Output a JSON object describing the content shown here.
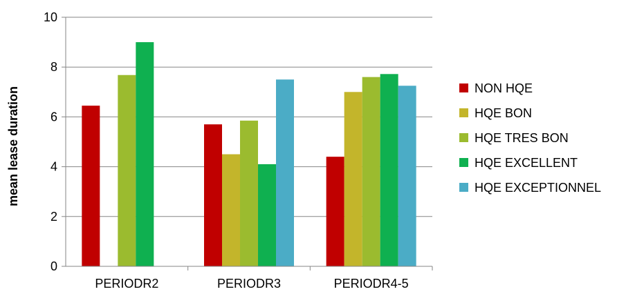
{
  "chart_data": {
    "type": "bar",
    "title": "",
    "xlabel": "",
    "ylabel": "mean lease duration",
    "ylim": [
      0,
      10
    ],
    "yticks": [
      0,
      2,
      4,
      6,
      8,
      10
    ],
    "grid": true,
    "legend_position": "right",
    "categories": [
      "PERIODR2",
      "PERIODR3",
      "PERIODR4-5"
    ],
    "series": [
      {
        "name": "NON HQE",
        "color": "#c00000",
        "values": [
          6.45,
          5.7,
          4.4
        ]
      },
      {
        "name": "HQE BON",
        "color": "#c3b52b",
        "values": [
          null,
          4.5,
          7.0
        ]
      },
      {
        "name": "HQE TRES BON",
        "color": "#9bbb2f",
        "values": [
          7.68,
          5.85,
          7.6
        ]
      },
      {
        "name": "HQE EXCELLENT",
        "color": "#0fb050",
        "values": [
          9.0,
          4.1,
          7.72
        ]
      },
      {
        "name": "HQE EXCEPTIONNEL",
        "color": "#4bacc6",
        "values": [
          null,
          7.5,
          7.25
        ]
      }
    ]
  }
}
